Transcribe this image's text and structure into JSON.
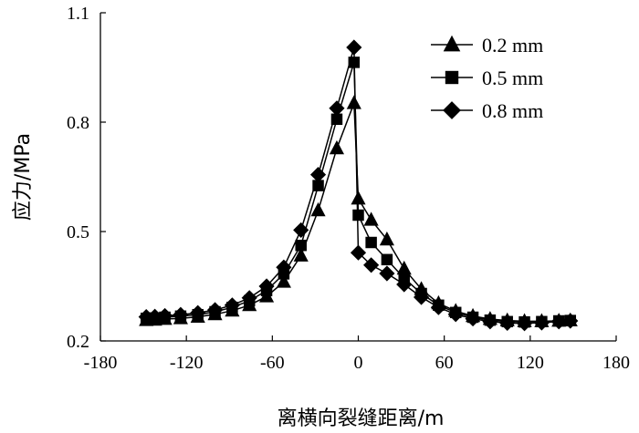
{
  "chart_data": {
    "type": "line",
    "xlabel": "离横向裂缝距离/m",
    "ylabel": "应力/MPa",
    "xlim": [
      -180,
      180
    ],
    "ylim": [
      0.2,
      1.1
    ],
    "x_ticks": [
      -180,
      -120,
      -60,
      0,
      60,
      120,
      180
    ],
    "y_ticks": [
      0.2,
      0.5,
      0.8,
      1.1
    ],
    "x_tick_labels": [
      "-180",
      "-120",
      "-60",
      "0",
      "60",
      "120",
      "180"
    ],
    "y_tick_labels": [
      "0.2",
      "0.5",
      "0.8",
      "1.1"
    ],
    "legend_position": "top-right",
    "grid": false,
    "series": [
      {
        "name": "0.2 mm",
        "marker": "triangle",
        "points": [
          [
            -148,
            0.257
          ],
          [
            -142,
            0.258
          ],
          [
            -135,
            0.26
          ],
          [
            -124,
            0.262
          ],
          [
            -112,
            0.266
          ],
          [
            -100,
            0.273
          ],
          [
            -88,
            0.283
          ],
          [
            -76,
            0.298
          ],
          [
            -64,
            0.322
          ],
          [
            -52,
            0.362
          ],
          [
            -40,
            0.434
          ],
          [
            -28,
            0.558
          ],
          [
            -15,
            0.728
          ],
          [
            -3,
            0.852
          ],
          [
            0,
            0.59
          ],
          [
            9,
            0.532
          ],
          [
            20,
            0.478
          ],
          [
            32,
            0.398
          ],
          [
            44,
            0.342
          ],
          [
            56,
            0.303
          ],
          [
            68,
            0.282
          ],
          [
            80,
            0.268
          ],
          [
            92,
            0.26
          ],
          [
            104,
            0.256
          ],
          [
            116,
            0.254
          ],
          [
            128,
            0.254
          ],
          [
            140,
            0.255
          ],
          [
            148,
            0.256
          ]
        ]
      },
      {
        "name": "0.5 mm",
        "marker": "square",
        "points": [
          [
            -148,
            0.262
          ],
          [
            -142,
            0.263
          ],
          [
            -135,
            0.265
          ],
          [
            -124,
            0.268
          ],
          [
            -112,
            0.272
          ],
          [
            -100,
            0.28
          ],
          [
            -88,
            0.292
          ],
          [
            -76,
            0.31
          ],
          [
            -64,
            0.338
          ],
          [
            -52,
            0.384
          ],
          [
            -40,
            0.462
          ],
          [
            -28,
            0.626
          ],
          [
            -15,
            0.808
          ],
          [
            -3,
            0.964
          ],
          [
            0,
            0.545
          ],
          [
            9,
            0.47
          ],
          [
            20,
            0.423
          ],
          [
            32,
            0.372
          ],
          [
            44,
            0.33
          ],
          [
            56,
            0.298
          ],
          [
            68,
            0.278
          ],
          [
            80,
            0.265
          ],
          [
            92,
            0.257
          ],
          [
            104,
            0.253
          ],
          [
            116,
            0.252
          ],
          [
            128,
            0.253
          ],
          [
            140,
            0.255
          ],
          [
            148,
            0.256
          ]
        ]
      },
      {
        "name": "0.8 mm",
        "marker": "diamond",
        "points": [
          [
            -148,
            0.266
          ],
          [
            -142,
            0.267
          ],
          [
            -135,
            0.269
          ],
          [
            -124,
            0.272
          ],
          [
            -112,
            0.277
          ],
          [
            -100,
            0.285
          ],
          [
            -88,
            0.298
          ],
          [
            -76,
            0.318
          ],
          [
            -64,
            0.35
          ],
          [
            -52,
            0.402
          ],
          [
            -40,
            0.504
          ],
          [
            -28,
            0.656
          ],
          [
            -15,
            0.838
          ],
          [
            -3,
            1.005
          ],
          [
            0,
            0.442
          ],
          [
            9,
            0.408
          ],
          [
            20,
            0.385
          ],
          [
            32,
            0.355
          ],
          [
            44,
            0.32
          ],
          [
            56,
            0.292
          ],
          [
            68,
            0.273
          ],
          [
            80,
            0.261
          ],
          [
            92,
            0.253
          ],
          [
            104,
            0.249
          ],
          [
            116,
            0.248
          ],
          [
            128,
            0.25
          ],
          [
            140,
            0.253
          ],
          [
            148,
            0.255
          ]
        ]
      }
    ]
  }
}
